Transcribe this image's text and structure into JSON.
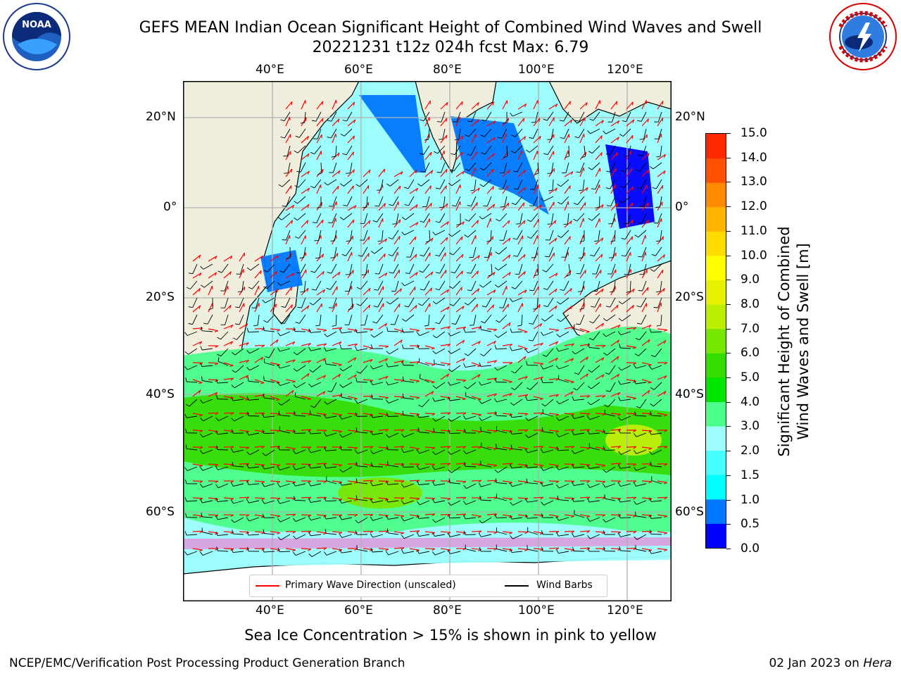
{
  "header": {
    "title_line1": "GEFS MEAN Indian Ocean Significant Height of Combined Wind Waves and Swell",
    "title_line2": "20221231 t12z 024h fcst   Max: 6.79"
  },
  "logos": {
    "noaa": {
      "text": "NOAA",
      "ring_text": "NATIONAL OCEANIC AND ATMOSPHERIC ADMINISTRATION · U.S. DEPARTMENT OF COMMERCE"
    },
    "nws": {
      "ring_text": "NATIONAL WEATHER SERVICE"
    }
  },
  "map": {
    "lon_labels": [
      "40°E",
      "60°E",
      "80°E",
      "100°E",
      "120°E"
    ],
    "lat_labels_left": [
      "20°N",
      "0°",
      "20°S",
      "40°S",
      "60°S"
    ],
    "lat_labels_right": [
      "20°N",
      "0°",
      "20°S",
      "40°S",
      "60°S"
    ],
    "colors": {
      "land": "#efeedd",
      "ocean_low": "#9dfdfd",
      "grid": "#b0b0b0"
    }
  },
  "colorbar": {
    "title_line1": "Significant Height of Combined",
    "title_line2": "Wind Waves and Swell [m]",
    "tick_labels": [
      "0.0",
      "0.5",
      "1.0",
      "1.5",
      "2.0",
      "3.0",
      "4.0",
      "5.0",
      "6.0",
      "7.0",
      "8.0",
      "9.0",
      "10.0",
      "11.0",
      "12.0",
      "13.0",
      "14.0",
      "15.0"
    ],
    "colors": [
      "#0000ff",
      "#0077ff",
      "#00ffff",
      "#44ffff",
      "#9dfdfd",
      "#4bff8a",
      "#00e600",
      "#33dd00",
      "#77e600",
      "#bbee00",
      "#e6f000",
      "#ffff00",
      "#ffdc00",
      "#ffb400",
      "#ff8c00",
      "#ff5000",
      "#ff2800",
      "#ff0000"
    ]
  },
  "legend": {
    "items": [
      {
        "label": "Primary Wave Direction (unscaled)",
        "color": "#ff0000"
      },
      {
        "label": "Wind Barbs",
        "color": "#000000"
      }
    ]
  },
  "caption": "Sea Ice Concentration > 15% is shown in pink to yellow",
  "footer": {
    "left": "NCEP/EMC/Verification Post Processing Product Generation Branch",
    "right_prefix": "02 Jan 2023 on ",
    "right_host": "Hera"
  }
}
